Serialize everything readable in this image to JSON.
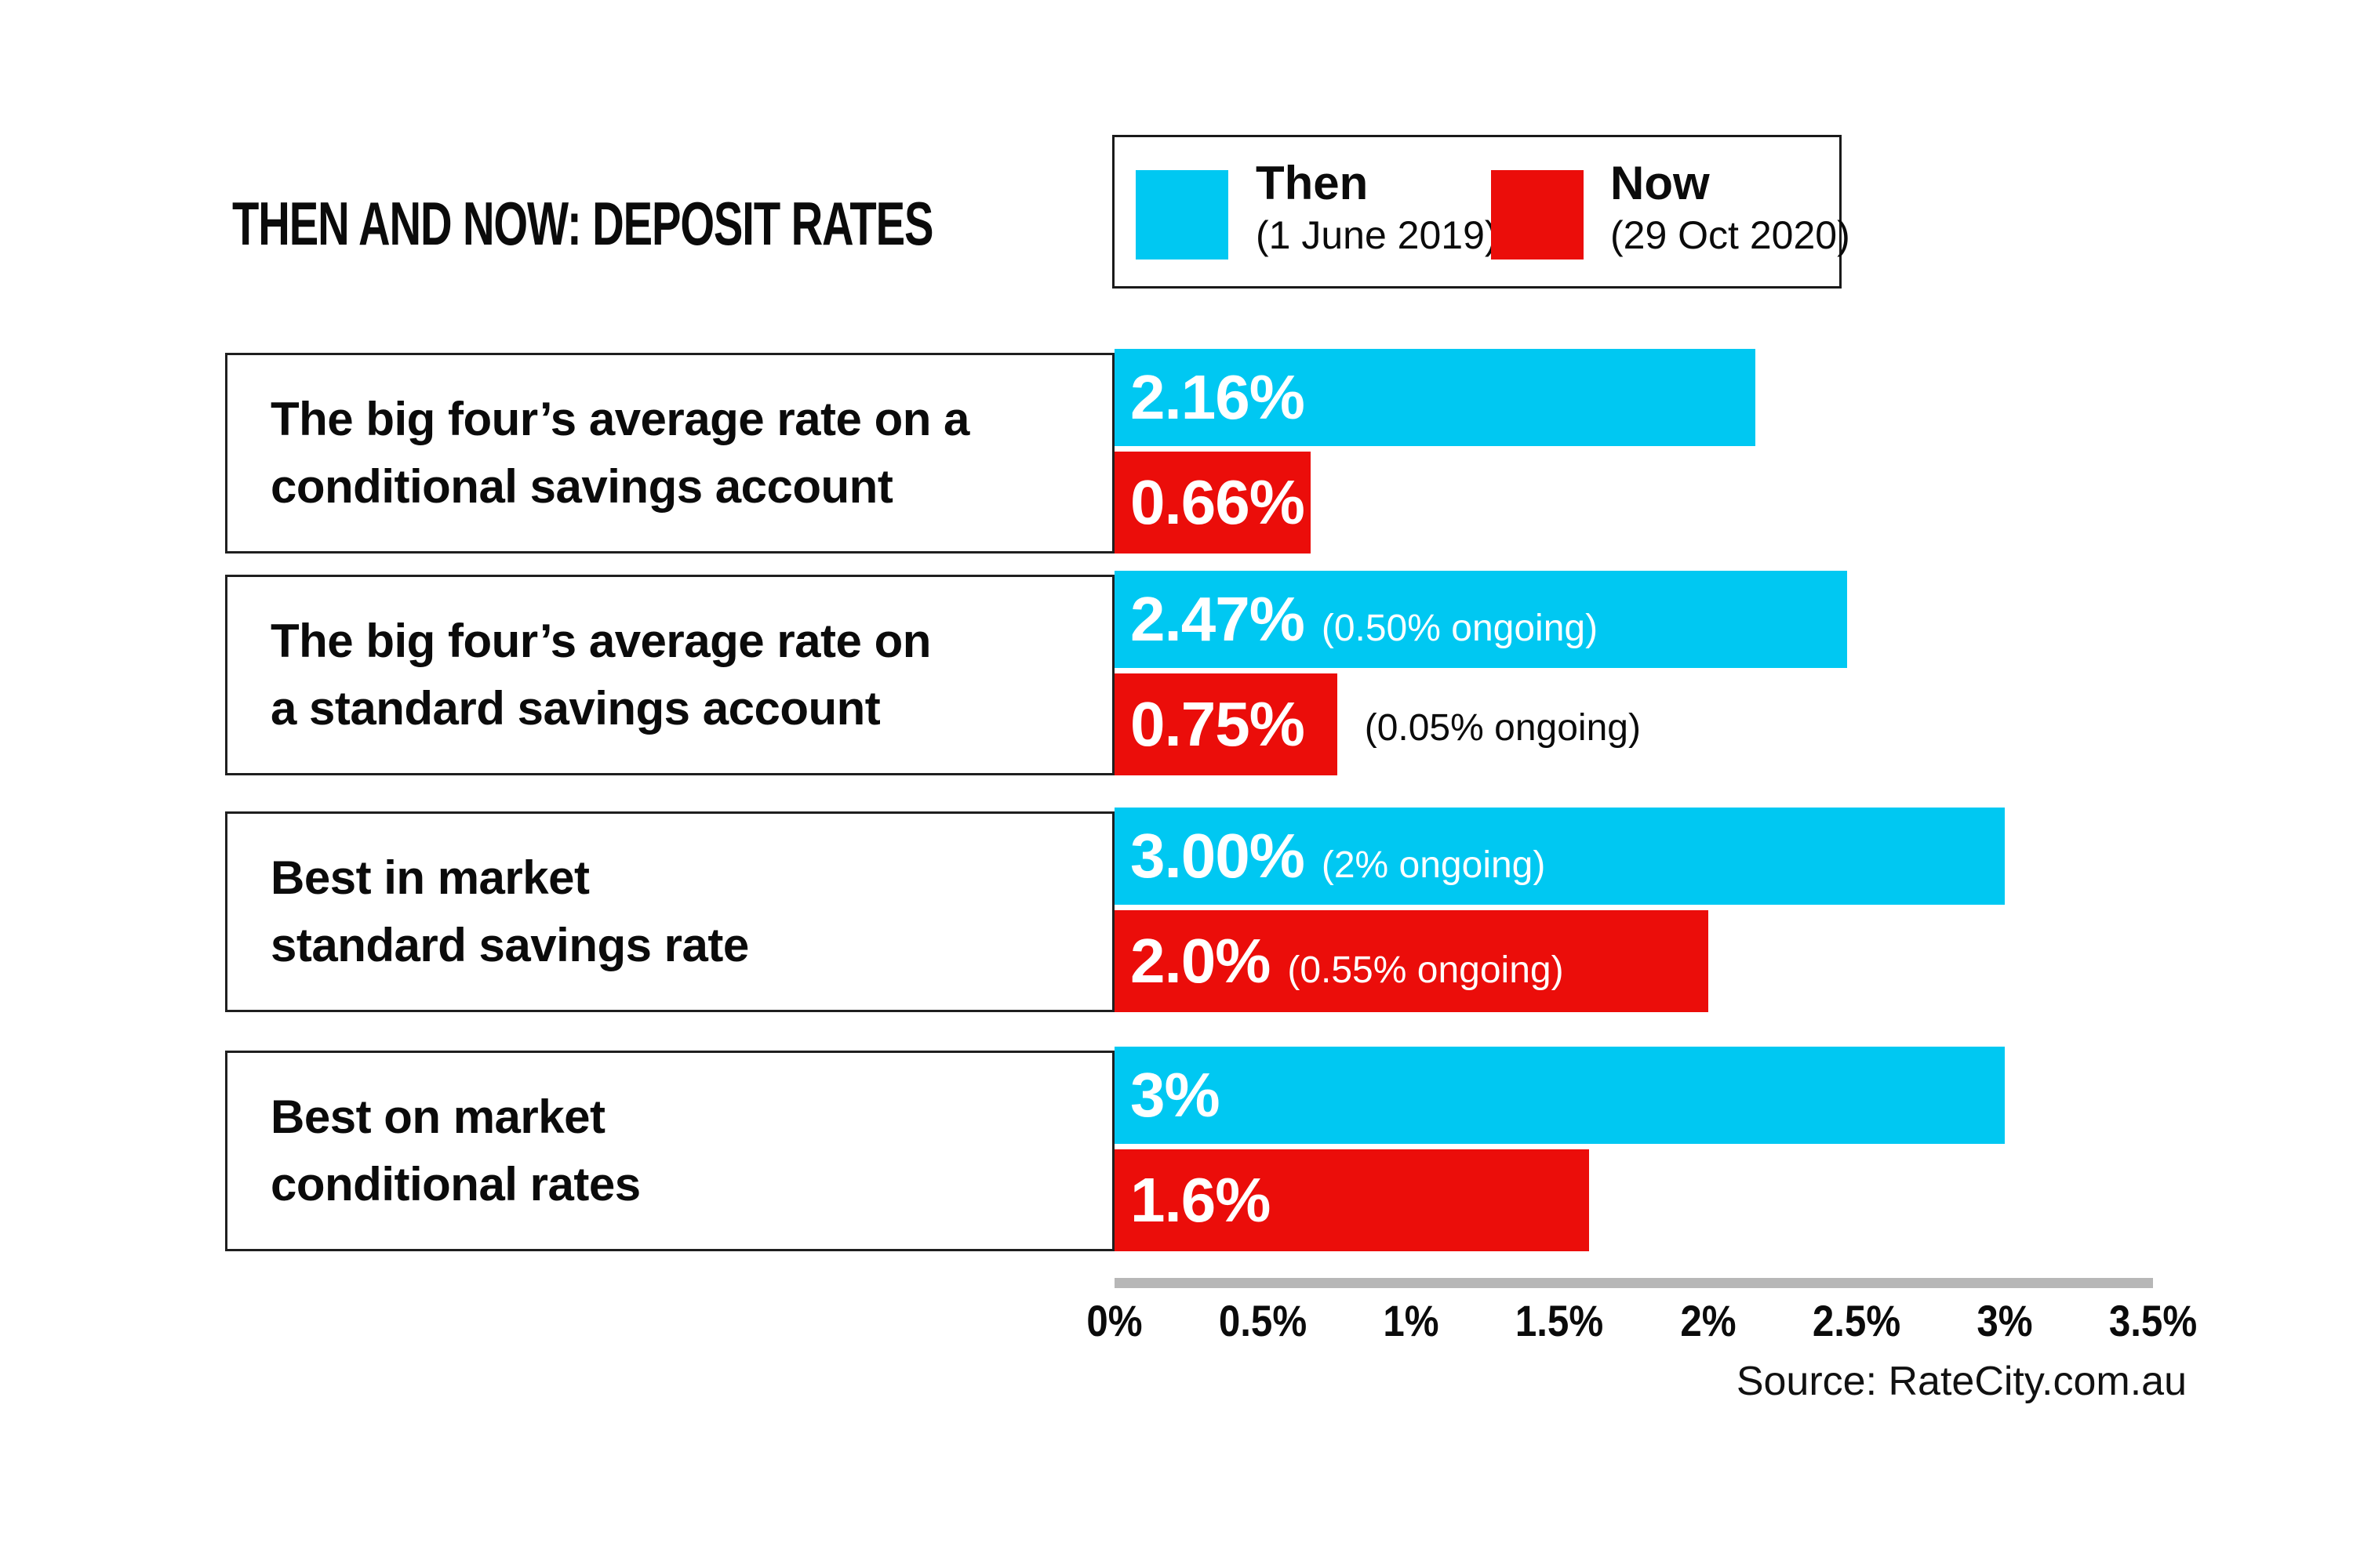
{
  "chart_data": {
    "type": "bar",
    "orientation": "horizontal",
    "title": "THEN AND NOW: DEPOSIT RATES",
    "legend_position": "top-right",
    "legend": [
      {
        "name": "Then",
        "sub": "(1 June 2019)",
        "color": "#00c8f2"
      },
      {
        "name": "Now",
        "sub": "(29 Oct 2020)",
        "color": "#eb0d0a"
      }
    ],
    "xlim": [
      0,
      3.5
    ],
    "grid": false,
    "axis_color": "#b7b7b7",
    "x_ticks": [
      {
        "label": "0%",
        "value": 0
      },
      {
        "label": "0.5%",
        "value": 0.5
      },
      {
        "label": "1%",
        "value": 1
      },
      {
        "label": "1.5%",
        "value": 1.5
      },
      {
        "label": "2%",
        "value": 2
      },
      {
        "label": "2.5%",
        "value": 2.5
      },
      {
        "label": "3%",
        "value": 3
      },
      {
        "label": "3.5%",
        "value": 3.5
      }
    ],
    "categories": [
      "The big four’s average rate on a conditional savings account",
      "The big four’s average rate on a standard savings account",
      "Best in market standard savings rate",
      "Best on market conditional rates"
    ],
    "series": [
      {
        "name": "Then",
        "values": [
          2.16,
          2.47,
          3.0,
          3.0
        ]
      },
      {
        "name": "Now",
        "values": [
          0.66,
          0.75,
          2.0,
          1.6
        ]
      }
    ],
    "rows": [
      {
        "label": "The big four’s average rate on a\nconditional savings account",
        "then": {
          "value": 2.16,
          "text": "2.16%",
          "note": "",
          "note_outside": ""
        },
        "now": {
          "value": 0.66,
          "text": "0.66%",
          "note": "",
          "note_outside": ""
        }
      },
      {
        "label": "The big four’s average rate on\na standard savings account",
        "then": {
          "value": 2.47,
          "text": "2.47%",
          "note": "(0.50% ongoing)",
          "note_outside": ""
        },
        "now": {
          "value": 0.75,
          "text": "0.75%",
          "note": "",
          "note_outside": "(0.05% ongoing)"
        }
      },
      {
        "label": "Best in market\nstandard savings rate",
        "then": {
          "value": 3.0,
          "text": "3.00%",
          "note": "(2% ongoing)",
          "note_outside": ""
        },
        "now": {
          "value": 2.0,
          "text": "2.0%",
          "note": "(0.55% ongoing)",
          "note_outside": ""
        }
      },
      {
        "label": "Best on market\nconditional rates",
        "then": {
          "value": 3.0,
          "text": "3%",
          "note": "",
          "note_outside": ""
        },
        "now": {
          "value": 1.6,
          "text": "1.6%",
          "note": "",
          "note_outside": ""
        }
      }
    ],
    "source": "Source: RateCity.com.au"
  }
}
